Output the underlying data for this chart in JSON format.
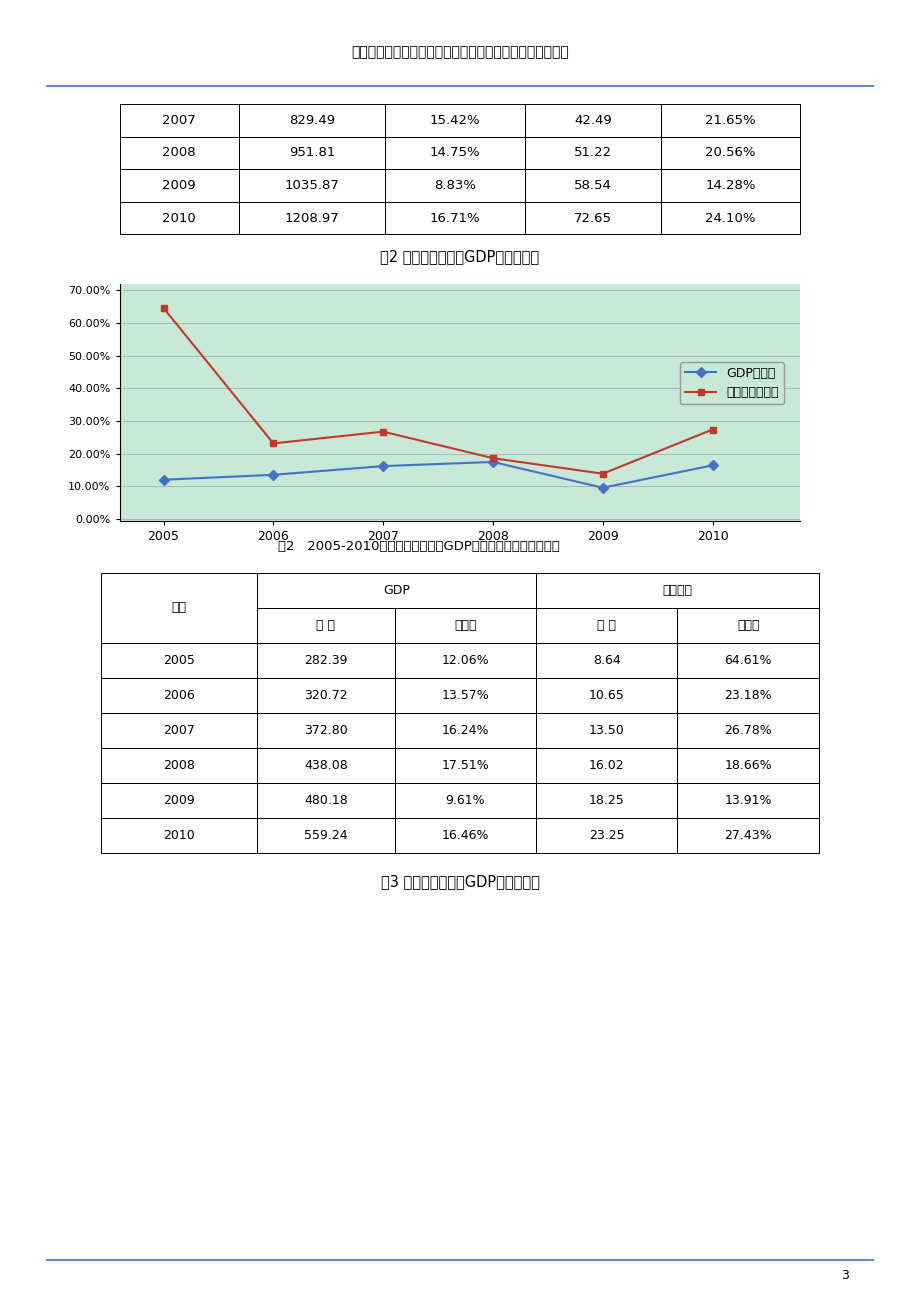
{
  "page_title": "广东潮汕三市财政收入与广东全省地方一般收入的比较分析",
  "page_number": "3",
  "top_table_rows": [
    [
      "2007",
      "829.49",
      "15.42%",
      "42.49",
      "21.65%"
    ],
    [
      "2008",
      "951.81",
      "14.75%",
      "51.22",
      "20.56%"
    ],
    [
      "2009",
      "1035.87",
      "8.83%",
      "58.54",
      "14.28%"
    ],
    [
      "2010",
      "1208.97",
      "16.71%",
      "72.65",
      "24.10%"
    ]
  ],
  "chart_title": "图2 潮州财政收入与GDP增长走势图",
  "chart_bg_color": "#c8e8d8",
  "chart_years": [
    2005,
    2006,
    2007,
    2008,
    2009,
    2010
  ],
  "gdp_growth": [
    0.1206,
    0.1357,
    0.1624,
    0.1751,
    0.0961,
    0.1646
  ],
  "fiscal_growth": [
    0.6461,
    0.2318,
    0.2678,
    0.1866,
    0.1391,
    0.2743
  ],
  "gdp_line_color": "#4472c4",
  "fiscal_line_color": "#c0392b",
  "legend_gdp": "GDP增长率",
  "legend_fiscal": "财政收入增长率",
  "table2_title": "表2   2005-2010年潮州财政收入与GDP增长比较（单位：亿元）",
  "table2_rows": [
    [
      "2005",
      "282.39",
      "12.06%",
      "8.64",
      "64.61%"
    ],
    [
      "2006",
      "320.72",
      "13.57%",
      "10.65",
      "23.18%"
    ],
    [
      "2007",
      "372.80",
      "16.24%",
      "13.50",
      "26.78%"
    ],
    [
      "2008",
      "438.08",
      "17.51%",
      "16.02",
      "18.66%"
    ],
    [
      "2009",
      "480.18",
      "9.61%",
      "18.25",
      "13.91%"
    ],
    [
      "2010",
      "559.24",
      "16.46%",
      "23.25",
      "27.43%"
    ]
  ],
  "fig3_title": "图3 揭阳财政收入与GDP增长走势图",
  "sidebar_color": "#5b9bd5",
  "sidebar_line_color": "#4472c4",
  "page_bg": "#ffffff"
}
